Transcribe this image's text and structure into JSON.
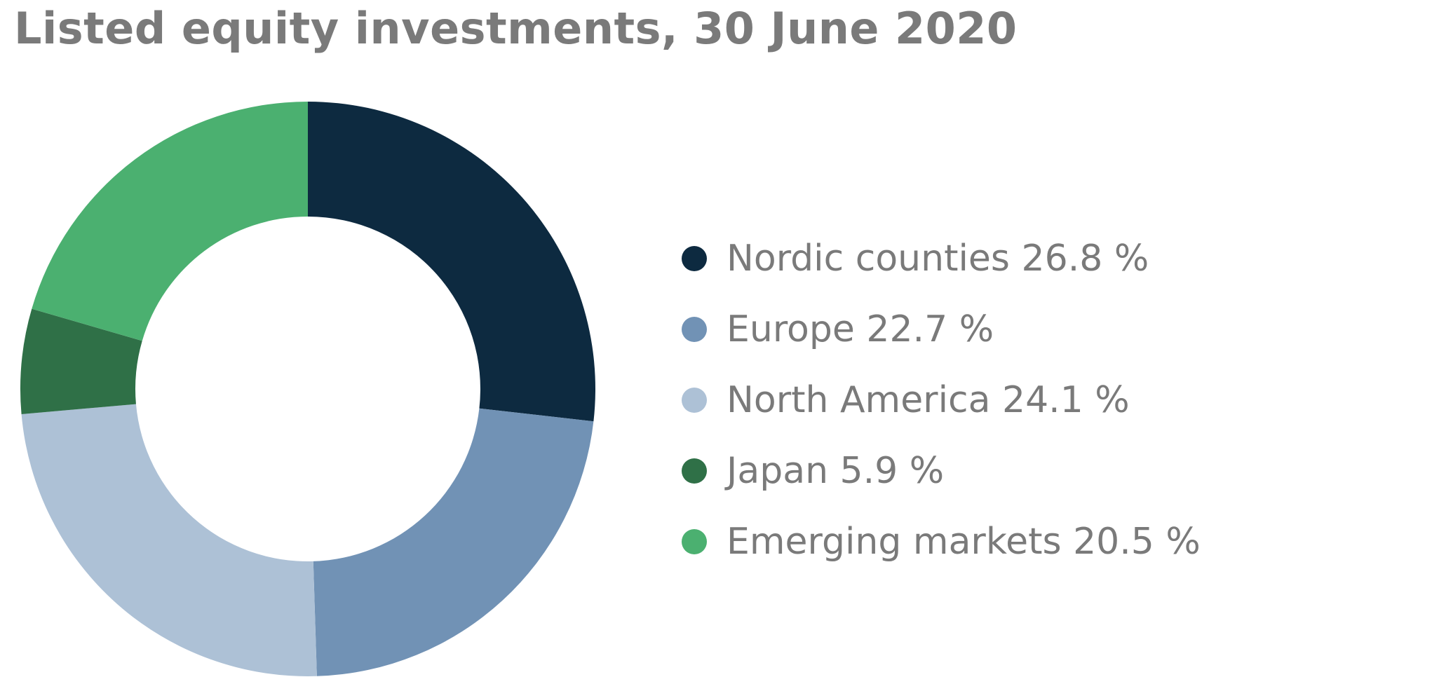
{
  "chart_data": {
    "type": "pie",
    "title": "Listed equity investments, 30 June 2020",
    "donut": true,
    "start_angle_deg": 0,
    "direction": "clockwise",
    "legend_position": "right",
    "unit": "%",
    "slices": [
      {
        "name": "Nordic counties",
        "value": 26.8,
        "label": "Nordic counties 26.8 %",
        "color": "#0d2a40"
      },
      {
        "name": "Europe",
        "value": 22.7,
        "label": "Europe 22.7 %",
        "color": "#7192b5"
      },
      {
        "name": "North America",
        "value": 24.1,
        "label": "North America 24.1 %",
        "color": "#adc1d6"
      },
      {
        "name": "Japan",
        "value": 5.9,
        "label": "Japan 5.9 %",
        "color": "#2f7047"
      },
      {
        "name": "Emerging markets",
        "value": 20.5,
        "label": "Emerging markets 20.5 %",
        "color": "#4bb070"
      }
    ]
  }
}
